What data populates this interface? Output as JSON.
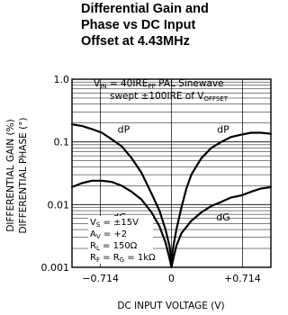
{
  "title_lines": [
    "Differential Gain and",
    "Phase vs DC Input",
    "Offset at 4.43MHz"
  ],
  "chart_data": {
    "type": "line",
    "title": "Differential Gain and Phase vs DC Input Offset at 4.43MHz",
    "xlabel": "DC INPUT VOLTAGE (V)",
    "ylabel_lines": [
      "DIFFERENTIAL GAIN (%)",
      "DIFFERENTIAL PHASE (°)"
    ],
    "xlim": [
      -1,
      1
    ],
    "ylim": [
      0.001,
      1.0
    ],
    "yscale": "log",
    "grid": true,
    "x_ticks": [
      {
        "value": -0.714,
        "label": "−0.714"
      },
      {
        "value": 0,
        "label": "0"
      },
      {
        "value": 0.714,
        "label": "+0.714"
      }
    ],
    "y_ticks": [
      {
        "value": 1.0,
        "label": "1.0"
      },
      {
        "value": 0.1,
        "label": "0.1"
      },
      {
        "value": 0.01,
        "label": "0.01"
      },
      {
        "value": 0.001,
        "label": "0.001"
      }
    ],
    "series": [
      {
        "name": "dP",
        "x": [
          -1.0,
          -0.9,
          -0.8,
          -0.7,
          -0.6,
          -0.5,
          -0.4,
          -0.3,
          -0.2,
          -0.12,
          -0.06,
          -0.02,
          0.0,
          0.02,
          0.05,
          0.1,
          0.15,
          0.2,
          0.3,
          0.4,
          0.5,
          0.6,
          0.7,
          0.8,
          0.9,
          1.0
        ],
        "y": [
          0.19,
          0.18,
          0.16,
          0.14,
          0.11,
          0.085,
          0.055,
          0.032,
          0.015,
          0.008,
          0.004,
          0.0022,
          0.0013,
          0.0022,
          0.004,
          0.009,
          0.018,
          0.03,
          0.055,
          0.08,
          0.1,
          0.12,
          0.13,
          0.14,
          0.14,
          0.135
        ]
      },
      {
        "name": "dG",
        "x": [
          -1.0,
          -0.9,
          -0.8,
          -0.7,
          -0.6,
          -0.5,
          -0.4,
          -0.3,
          -0.2,
          -0.12,
          -0.06,
          -0.02,
          0.0,
          0.02,
          0.05,
          0.1,
          0.2,
          0.3,
          0.4,
          0.5,
          0.6,
          0.7,
          0.8,
          0.9,
          1.0
        ],
        "y": [
          0.019,
          0.022,
          0.024,
          0.024,
          0.023,
          0.02,
          0.016,
          0.012,
          0.0075,
          0.0045,
          0.0025,
          0.0014,
          0.001,
          0.0014,
          0.0022,
          0.0035,
          0.0055,
          0.0075,
          0.0095,
          0.011,
          0.013,
          0.014,
          0.016,
          0.018,
          0.019
        ]
      }
    ],
    "annotations": {
      "top": {
        "line1": "V_IN = 40IRE_PP PAL Sinewave",
        "line2": "swept ±100IRE of V_OFFSET"
      },
      "curve_labels": [
        {
          "text": "dP",
          "x": -0.48,
          "y": 0.16
        },
        {
          "text": "dP",
          "x": 0.52,
          "y": 0.16
        },
        {
          "text": "dG",
          "x": -0.52,
          "y": 0.0064
        },
        {
          "text": "dG",
          "x": 0.52,
          "y": 0.0064
        }
      ],
      "conditions": [
        "V_S = ±15V",
        "A_V = +2",
        "R_L = 150Ω",
        "R_F = R_G = 1kΩ"
      ]
    }
  }
}
